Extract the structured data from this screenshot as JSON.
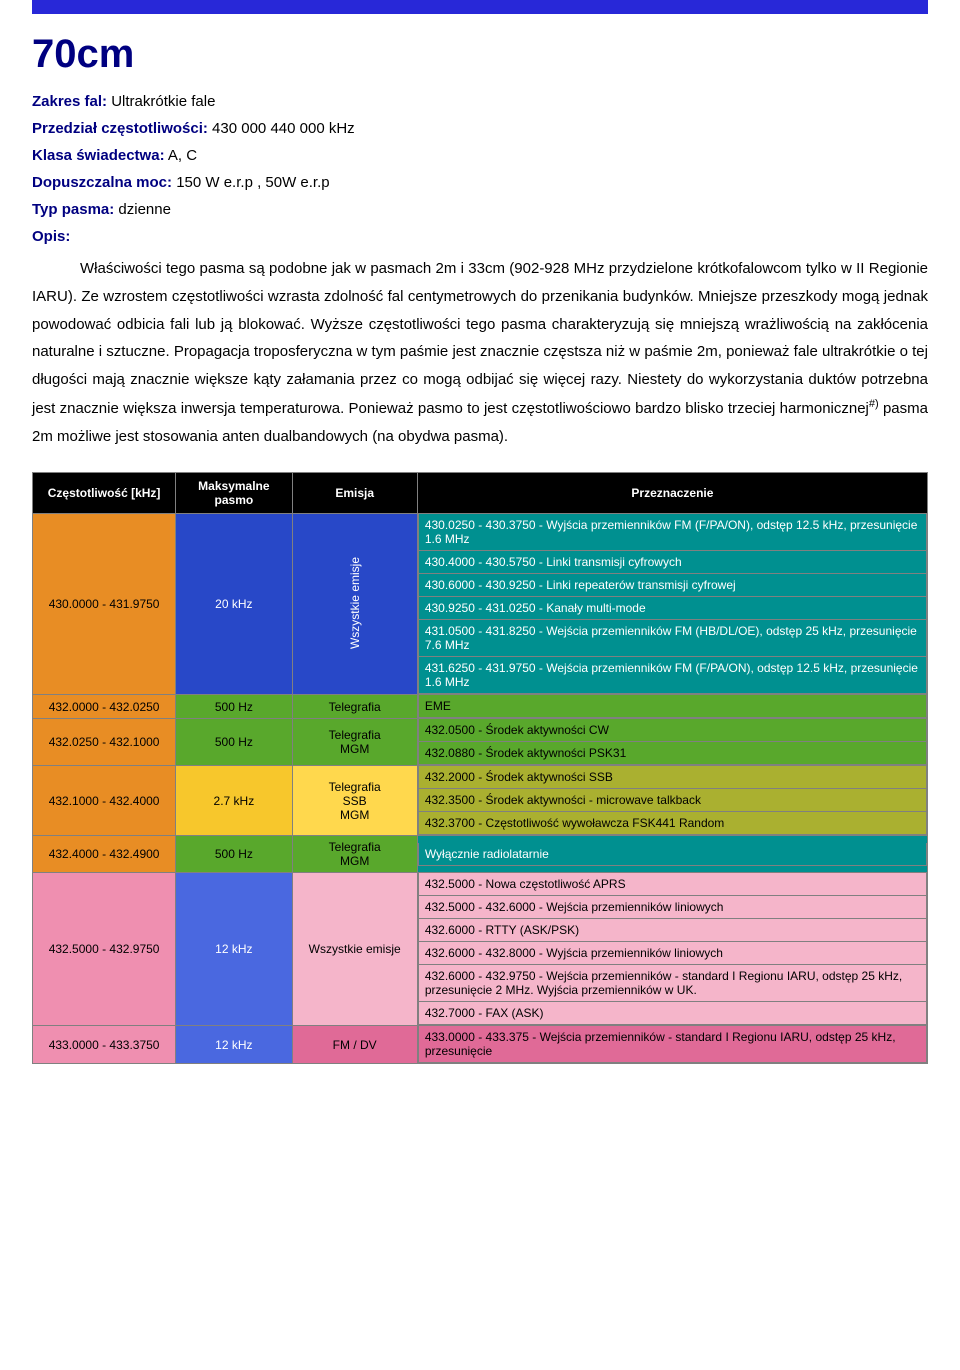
{
  "colors": {
    "topbar": "#2828d8",
    "navy": "#000080",
    "header_bg": "#000000",
    "header_fg": "#ffffff",
    "orange": "#e88d24",
    "blue": "#2848c8",
    "teal": "#009090",
    "green": "#59a82c",
    "yellow": "#f7c72c",
    "yellow_lt": "#ffd84d",
    "olive": "#aab030",
    "pink": "#ef8fb0",
    "pink_lt": "#f5b5ca",
    "pink_dk": "#e06a97",
    "blue_lt": "#4a68e0",
    "white_text": "#ffffff"
  },
  "title": "70cm",
  "meta": [
    {
      "label": "Zakres fal:",
      "value": " Ultrakrótkie fale"
    },
    {
      "label": "Przedział częstotliwości:",
      "value": " 430 000 440 000 kHz"
    },
    {
      "label": "Klasa świadectwa:",
      "value": " A, C"
    },
    {
      "label": "Dopuszczalna moc:",
      "value": " 150 W e.r.p , 50W e.r.p"
    },
    {
      "label": "Typ pasma:",
      "value": " dzienne"
    },
    {
      "label": "Opis:",
      "value": ""
    }
  ],
  "description": {
    "text_pre_sup": "Właściwości tego pasma są podobne jak w pasmach 2m i 33cm (902-928 MHz przydzielone krótkofalowcom tylko w II Regionie IARU). Ze wzrostem częstotliwości wzrasta zdolność fal centymetrowych do przenikania budynków. Mniejsze przeszkody mogą jednak powodować odbicia fali lub ją blokować. Wyższe częstotliwości tego pasma charakteryzują się mniejszą wrażliwością na zakłócenia naturalne i sztuczne. Propagacja troposferyczna w tym paśmie jest znacznie częstsza niż w paśmie 2m, ponieważ fale ultrakrótkie o tej długości mają znacznie większe kąty załamania przez co mogą odbijać się więcej razy. Niestety do wykorzystania duktów potrzebna jest znacznie większa inwersja temperaturowa. Ponieważ pasmo to jest częstotliwościowo bardzo blisko trzeciej harmonicznej",
    "sup": "#)",
    "text_post_sup": " pasma 2m możliwe jest stosowania anten dualbandowych (na obydwa pasma)."
  },
  "table": {
    "headers": [
      "Częstotliwość [kHz]",
      "Maksymalne pasmo",
      "Emisja",
      "Przeznaczenie"
    ],
    "col_widths": [
      "16%",
      "13%",
      "14%",
      "57%"
    ],
    "rows": [
      {
        "freq": "430.0000 - 431.9750",
        "freq_bg": "orange",
        "bw": "20 kHz",
        "bw_bg": "blue",
        "bw_fg": "white_text",
        "emis": "Wszystkie emisje",
        "emis_vert": true,
        "emis_bg": "blue",
        "emis_fg": "white_text",
        "purpose_bg": "teal",
        "purpose_fg": "white_text",
        "purposes": [
          "430.0250 - 430.3750 - Wyjścia przemienników FM (F/PA/ON), odstęp 12.5 kHz, przesunięcie 1.6 MHz",
          "430.4000 - 430.5750 - Linki transmisji cyfrowych",
          "430.6000 - 430.9250 - Linki repeaterów transmisji cyfrowej",
          "430.9250 - 431.0250 - Kanały multi-mode",
          "431.0500 - 431.8250 - Wejścia przemienników FM (HB/DL/OE), odstęp 25 kHz, przesunięcie 7.6 MHz",
          "431.6250 - 431.9750 - Wejścia przemienników FM (F/PA/ON), odstęp 12.5 kHz, przesunięcie 1.6 MHz"
        ]
      },
      {
        "freq": "432.0000 - 432.0250",
        "freq_bg": "orange",
        "bw": "500 Hz",
        "bw_bg": "green",
        "emis": "Telegrafia",
        "emis_bg": "green",
        "purpose_bg": "green",
        "purposes": [
          "EME"
        ]
      },
      {
        "freq": "432.0250 - 432.1000",
        "freq_bg": "orange",
        "bw": "500 Hz",
        "bw_bg": "green",
        "emis": "Telegrafia\nMGM",
        "emis_bg": "green",
        "purpose_bg": "green",
        "purposes": [
          "432.0500 - Środek aktywności CW",
          "432.0880 - Środek aktywności PSK31"
        ]
      },
      {
        "freq": "432.1000 - 432.4000",
        "freq_bg": "orange",
        "bw": "2.7 kHz",
        "bw_bg": "yellow",
        "emis": "Telegrafia\nSSB\nMGM",
        "emis_bg": "yellow_lt",
        "purpose_bg": "olive",
        "purposes": [
          "432.2000 - Środek aktywności SSB",
          "432.3500 - Środek aktywności - microwave talkback",
          "432.3700 - Częstotliwość wywoławcza FSK441 Random"
        ]
      },
      {
        "freq": "432.4000 - 432.4900",
        "freq_bg": "orange",
        "bw": "500 Hz",
        "bw_bg": "green",
        "emis": "Telegrafia\nMGM",
        "emis_bg": "green",
        "purpose_bg": "teal",
        "purpose_fg": "white_text",
        "purposes": [
          "Wyłącznie radiolatarnie"
        ]
      },
      {
        "freq": "432.5000 - 432.9750",
        "freq_bg": "pink",
        "bw": "12 kHz",
        "bw_bg": "blue_lt",
        "bw_fg": "white_text",
        "emis": "Wszystkie emisje",
        "emis_bg": "pink_lt",
        "purpose_bg": "pink_lt",
        "purposes": [
          "432.5000 - Nowa częstotliwość APRS",
          "432.5000 - 432.6000 - Wejścia przemienników liniowych",
          "432.6000 - RTTY (ASK/PSK)",
          "432.6000 - 432.8000 - Wyjścia przemienników liniowych",
          "432.6000 - 432.9750 - Wejścia przemienników - standard I Regionu IARU, odstęp 25 kHz, przesunięcie 2 MHz. Wyjścia przemienników w UK.",
          "432.7000 - FAX (ASK)"
        ]
      },
      {
        "freq": "433.0000 - 433.3750",
        "freq_bg": "pink",
        "bw": "12 kHz",
        "bw_bg": "blue_lt",
        "bw_fg": "white_text",
        "emis": "FM / DV",
        "emis_bg": "pink_dk",
        "purpose_bg": "pink_dk",
        "purposes": [
          "433.0000 - 433.375 - Wejścia przemienników - standard I Regionu IARU, odstęp 25 kHz, przesunięcie"
        ]
      }
    ]
  }
}
